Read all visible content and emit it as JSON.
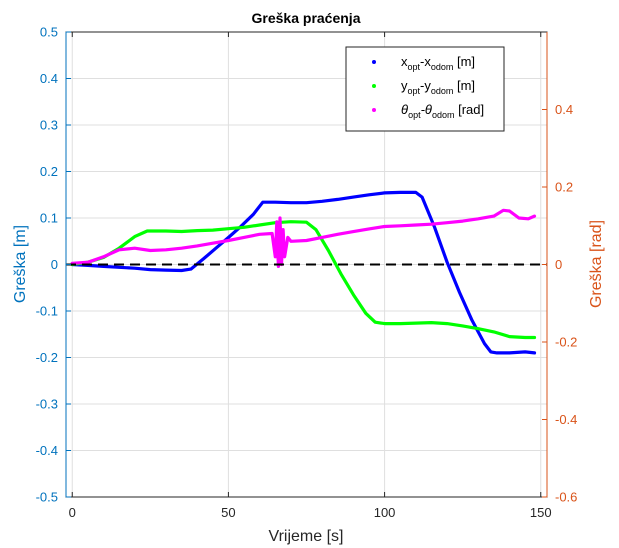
{
  "chart_data": {
    "type": "line",
    "title": "Greška praćenja",
    "xlabel": "Vrijeme [s]",
    "ylabel_left": "Greška [m]",
    "ylabel_right": "Greška [rad]",
    "xlim": [
      -2,
      152
    ],
    "ylim_left": [
      -0.5,
      0.5
    ],
    "ylim_right": [
      -0.6,
      0.6
    ],
    "x_ticks": [
      0,
      50,
      100,
      150
    ],
    "y_ticks_left": [
      -0.5,
      -0.4,
      -0.3,
      -0.2,
      -0.1,
      0,
      0.1,
      0.2,
      0.3,
      0.4,
      0.5
    ],
    "y_ticks_right": [
      -0.6,
      -0.4,
      -0.2,
      0,
      0.2,
      0.4
    ],
    "y_tick_labels_left": [
      "-0.5",
      "-0.4",
      "-0.3",
      "-0.2",
      "-0.1",
      "0",
      "0.1",
      "0.2",
      "0.3",
      "0.4",
      "0.5"
    ],
    "y_tick_labels_right": [
      "-0.6",
      "-0.4",
      "-0.2",
      "0",
      "0.2",
      "0.4"
    ],
    "x_tick_labels": [
      "0",
      "50",
      "100",
      "150"
    ],
    "grid": true,
    "legend_position": "top-right",
    "colors": {
      "left_axis": "#0072bd",
      "right_axis": "#d95319",
      "zero_line": "#000000"
    },
    "series": [
      {
        "name": "x_opt-x_odom [m]",
        "legend": {
          "main1": "x",
          "sub1": "opt",
          "mid": "-x",
          "sub2": "odom",
          "tail": " [m]"
        },
        "color": "#0000ff",
        "axis": "left",
        "x": [
          0,
          5,
          10,
          15,
          20,
          25,
          30,
          35,
          38,
          42,
          46,
          50,
          54,
          58,
          61,
          65,
          70,
          75,
          80,
          85,
          90,
          95,
          100,
          105,
          110,
          112,
          116,
          120,
          124,
          128,
          132,
          134,
          136,
          140,
          145,
          148
        ],
        "y": [
          0,
          -0.002,
          -0.004,
          -0.006,
          -0.008,
          -0.011,
          -0.012,
          -0.013,
          -0.01,
          0.012,
          0.035,
          0.058,
          0.082,
          0.108,
          0.134,
          0.134,
          0.133,
          0.133,
          0.136,
          0.14,
          0.145,
          0.15,
          0.154,
          0.155,
          0.155,
          0.145,
          0.08,
          0.005,
          -0.06,
          -0.12,
          -0.17,
          -0.188,
          -0.19,
          -0.19,
          -0.188,
          -0.19
        ]
      },
      {
        "name": "y_opt-y_odom [m]",
        "legend": {
          "main1": "y",
          "sub1": "opt",
          "mid": "-y",
          "sub2": "odom",
          "tail": " [m]"
        },
        "color": "#00ff00",
        "axis": "left",
        "x": [
          0,
          5,
          10,
          15,
          20,
          24,
          30,
          35,
          40,
          45,
          50,
          55,
          60,
          65,
          70,
          75,
          78,
          82,
          86,
          90,
          94,
          97,
          100,
          105,
          110,
          115,
          120,
          125,
          130,
          135,
          140,
          145,
          148
        ],
        "y": [
          0,
          0.005,
          0.015,
          0.035,
          0.06,
          0.072,
          0.072,
          0.071,
          0.073,
          0.074,
          0.077,
          0.08,
          0.085,
          0.09,
          0.092,
          0.091,
          0.075,
          0.03,
          -0.02,
          -0.065,
          -0.105,
          -0.124,
          -0.127,
          -0.127,
          -0.126,
          -0.125,
          -0.127,
          -0.132,
          -0.138,
          -0.145,
          -0.155,
          -0.157,
          -0.157
        ]
      },
      {
        "name": "θ_opt-θ_odom [rad]",
        "legend": {
          "main1": "θ",
          "sub1": "opt",
          "mid": "-θ",
          "sub2": "odom",
          "tail": " [rad]"
        },
        "color": "#ff00ff",
        "axis": "right",
        "x": [
          0,
          5,
          10,
          15,
          20,
          25,
          30,
          35,
          40,
          45,
          50,
          55,
          60,
          64,
          65,
          65.5,
          66,
          66.5,
          67,
          67.5,
          68,
          69,
          70,
          75,
          80,
          85,
          90,
          95,
          100,
          105,
          110,
          115,
          120,
          125,
          130,
          135,
          138,
          140,
          143,
          146,
          148
        ],
        "y": [
          0.003,
          0.006,
          0.02,
          0.038,
          0.042,
          0.036,
          0.038,
          0.042,
          0.048,
          0.055,
          0.062,
          0.07,
          0.078,
          0.08,
          0.02,
          0.11,
          -0.005,
          0.12,
          0.0,
          0.09,
          0.02,
          0.07,
          0.06,
          0.062,
          0.07,
          0.078,
          0.085,
          0.092,
          0.098,
          0.1,
          0.102,
          0.104,
          0.108,
          0.112,
          0.118,
          0.125,
          0.14,
          0.138,
          0.12,
          0.118,
          0.125
        ]
      }
    ]
  }
}
